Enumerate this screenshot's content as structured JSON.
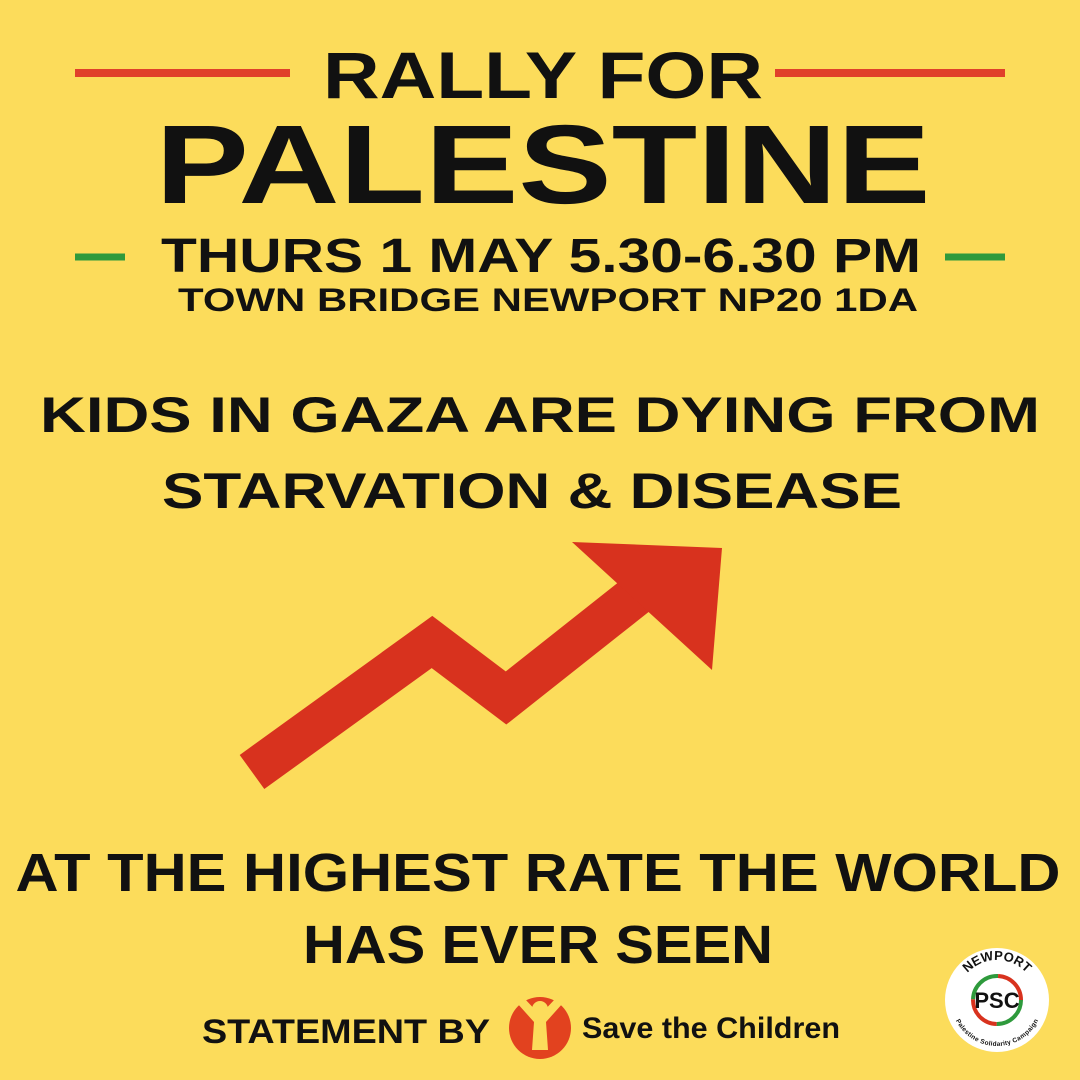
{
  "header": {
    "line1": "RALLY FOR",
    "line2": "PALESTINE",
    "date": "THURS 1 MAY 5.30-6.30 PM",
    "location": "TOWN BRIDGE NEWPORT NP20 1DA"
  },
  "message": {
    "lines": [
      "KIDS IN GAZA ARE DYING FROM",
      "STARVATION & DISEASE"
    ]
  },
  "conclusion": {
    "lines": [
      "AT THE HIGHEST RATE THE WORLD",
      "HAS EVER SEEN"
    ]
  },
  "footer": {
    "statement": "STATEMENT BY",
    "organisation": "Save the Children"
  },
  "logo": {
    "top": "NEWPORT",
    "center": "PSC",
    "bottom": "Palestine Solidarity Campaign"
  }
}
